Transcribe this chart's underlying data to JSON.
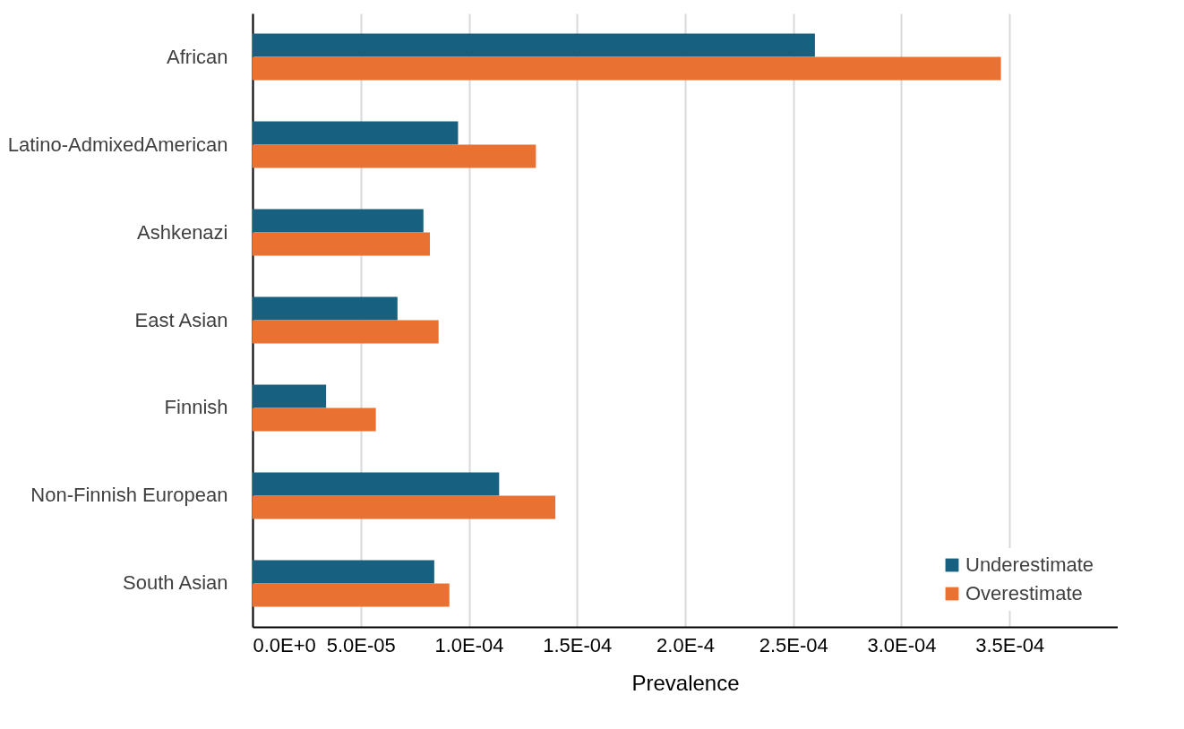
{
  "chart_data": {
    "type": "bar",
    "orientation": "horizontal",
    "xlabel": "Prevalence",
    "categories": [
      "African",
      "Latino-AdmixedAmerican",
      "Ashkenazi",
      "East Asian",
      "Finnish",
      "Non-Finnish European",
      "South Asian"
    ],
    "series": [
      {
        "name": "Underestimate",
        "color": "#17607f",
        "values": [
          0.00026,
          9.5e-05,
          7.9e-05,
          6.7e-05,
          3.4e-05,
          0.000114,
          8.4e-05
        ]
      },
      {
        "name": "Overestimate",
        "color": "#e97132",
        "values": [
          0.000346,
          0.000131,
          8.2e-05,
          8.6e-05,
          5.7e-05,
          0.00014,
          9.1e-05
        ]
      }
    ],
    "xlim": [
      0,
      0.0004
    ],
    "xticks": [
      {
        "value": 0,
        "label": "0.0E+0"
      },
      {
        "value": 5e-05,
        "label": "5.0E-05"
      },
      {
        "value": 0.0001,
        "label": "1.0E-04"
      },
      {
        "value": 0.00015,
        "label": "1.5E-04"
      },
      {
        "value": 0.0002,
        "label": "2.0E-4"
      },
      {
        "value": 0.00025,
        "label": "2.5E-04"
      },
      {
        "value": 0.0003,
        "label": "3.0E-04"
      },
      {
        "value": 0.00035,
        "label": "3.5E-04"
      }
    ],
    "grid": "x",
    "legend": "bottom right"
  }
}
